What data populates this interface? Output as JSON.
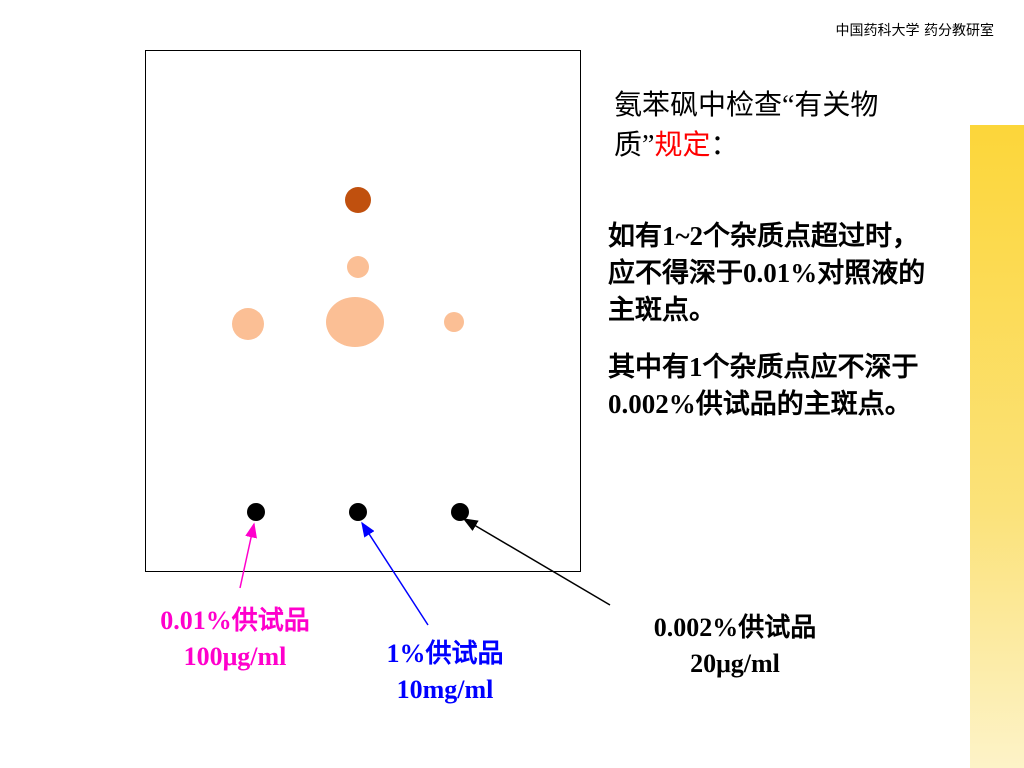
{
  "header": {
    "text": "中国药科大学  药分教研室"
  },
  "title": {
    "segments": [
      {
        "text": "氨苯砜中检查“有关物质”",
        "color": "#000000"
      },
      {
        "text": "规定",
        "color": "#ff0000"
      },
      {
        "text": "：",
        "color": "#000000"
      }
    ]
  },
  "paragraphs": [
    "如有1~2个杂质点超过时，应不得深于0.01%对照液的主斑点。",
    "其中有1个杂质点应不深于0.002%供试品的主斑点。"
  ],
  "labels": [
    {
      "lines": [
        "0.01%供试品",
        "100μg/ml"
      ],
      "color": "#ff00cc"
    },
    {
      "lines": [
        "1%供试品",
        "10mg/ml"
      ],
      "color": "#0000ff"
    },
    {
      "lines": [
        "0.002%供试品",
        "20μg/ml"
      ],
      "color": "#000000"
    }
  ]
}
